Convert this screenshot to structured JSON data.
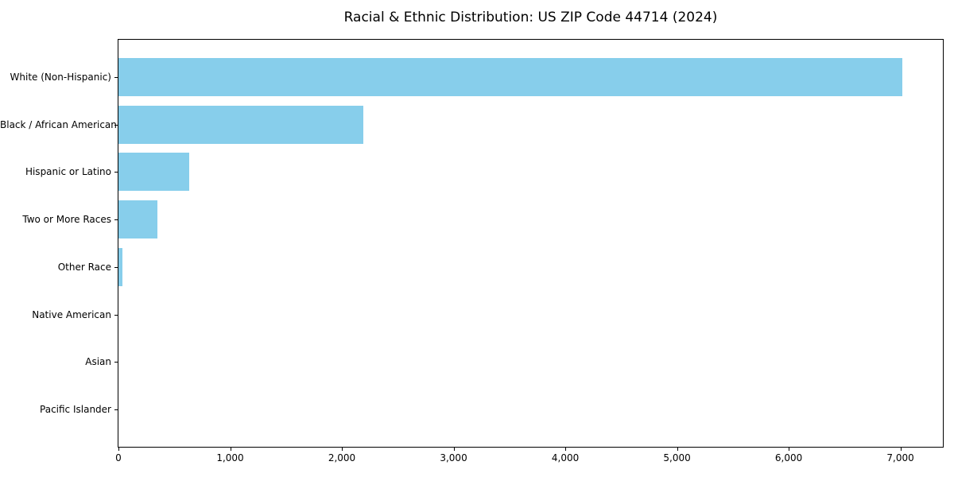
{
  "title": "Racial & Ethnic Distribution: US ZIP Code 44714 (2024)",
  "colors": {
    "bar": "#87CEEB",
    "axis": "#000000",
    "text": "#000000",
    "background": "#FFFFFF"
  },
  "chart_data": {
    "type": "bar",
    "orientation": "horizontal",
    "title": "Racial & Ethnic Distribution: US ZIP Code 44714 (2024)",
    "xlabel": "",
    "ylabel": "",
    "categories": [
      "White (Non-Hispanic)",
      "Black / African American",
      "Hispanic or Latino",
      "Two or More Races",
      "Other Race",
      "Native American",
      "Asian",
      "Pacific Islander"
    ],
    "values": [
      7020,
      2190,
      630,
      350,
      35,
      0,
      0,
      0
    ],
    "xlim": [
      0,
      7380
    ],
    "x_ticks": [
      0,
      1000,
      2000,
      3000,
      4000,
      5000,
      6000,
      7000
    ],
    "x_tick_labels": [
      "0",
      "1,000",
      "2,000",
      "3,000",
      "4,000",
      "5,000",
      "6,000",
      "7,000"
    ],
    "grid": false,
    "legend": false,
    "bar_color": "#87CEEB"
  }
}
